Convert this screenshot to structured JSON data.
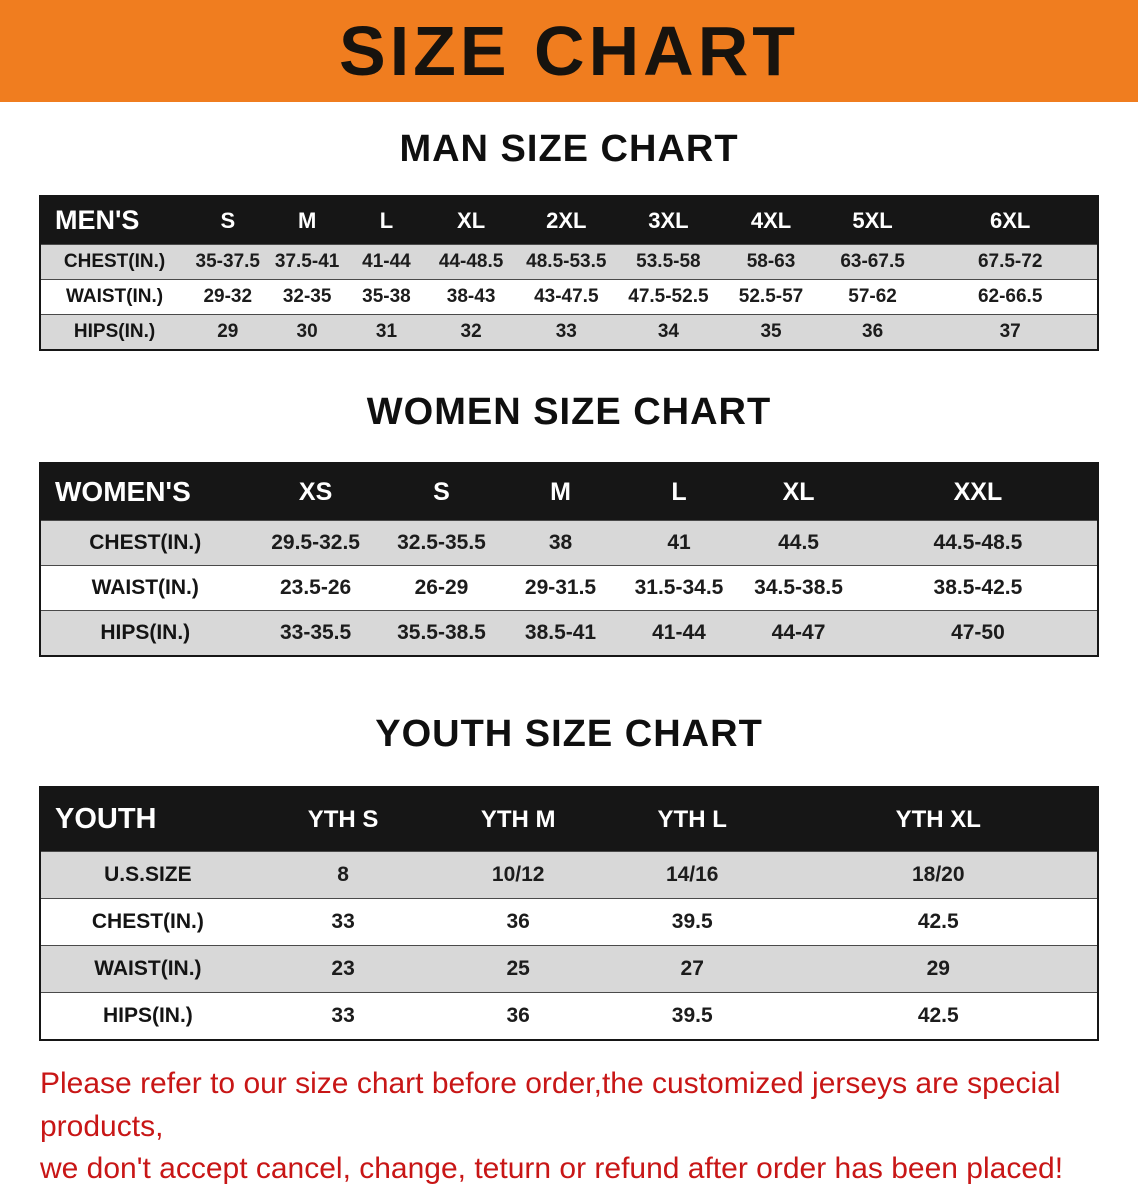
{
  "banner": {
    "title": "SIZE CHART"
  },
  "colors": {
    "banner_bg": "#f07d1f",
    "header_bg": "#161616",
    "stripe_bg": "#d8d8d8",
    "disclaimer_color": "#c81616"
  },
  "sections": [
    {
      "heading": "MAN SIZE CHART",
      "table": {
        "header": [
          "MEN'S",
          "S",
          "M",
          "L",
          "XL",
          "2XL",
          "3XL",
          "4XL",
          "5XL",
          "6XL"
        ],
        "rows": [
          [
            "CHEST(IN.)",
            "35-37.5",
            "37.5-41",
            "41-44",
            "44-48.5",
            "48.5-53.5",
            "53.5-58",
            "58-63",
            "63-67.5",
            "67.5-72"
          ],
          [
            "WAIST(IN.)",
            "29-32",
            "32-35",
            "35-38",
            "38-43",
            "43-47.5",
            "47.5-52.5",
            "52.5-57",
            "57-62",
            "62-66.5"
          ],
          [
            "HIPS(IN.)",
            "29",
            "30",
            "31",
            "32",
            "33",
            "34",
            "35",
            "36",
            "37"
          ]
        ]
      }
    },
    {
      "heading": "WOMEN SIZE CHART",
      "table": {
        "header": [
          "WOMEN'S",
          "XS",
          "S",
          "M",
          "L",
          "XL",
          "XXL"
        ],
        "rows": [
          [
            "CHEST(IN.)",
            "29.5-32.5",
            "32.5-35.5",
            "38",
            "41",
            "44.5",
            "44.5-48.5"
          ],
          [
            "WAIST(IN.)",
            "23.5-26",
            "26-29",
            "29-31.5",
            "31.5-34.5",
            "34.5-38.5",
            "38.5-42.5"
          ],
          [
            "HIPS(IN.)",
            "33-35.5",
            "35.5-38.5",
            "38.5-41",
            "41-44",
            "44-47",
            "47-50"
          ]
        ]
      }
    },
    {
      "heading": "YOUTH SIZE CHART",
      "table": {
        "header": [
          "YOUTH",
          "YTH S",
          "YTH M",
          "YTH L",
          "YTH XL"
        ],
        "rows": [
          [
            "U.S.SIZE",
            "8",
            "10/12",
            "14/16",
            "18/20"
          ],
          [
            "CHEST(IN.)",
            "33",
            "36",
            "39.5",
            "42.5"
          ],
          [
            "WAIST(IN.)",
            "23",
            "25",
            "27",
            "29"
          ],
          [
            "HIPS(IN.)",
            "33",
            "36",
            "39.5",
            "42.5"
          ]
        ]
      }
    }
  ],
  "disclaimer": {
    "lines": [
      "Please refer to our size chart before order,the customized jerseys are special products,",
      "we don't accept cancel, change, teturn or refund after order has been placed!"
    ]
  }
}
